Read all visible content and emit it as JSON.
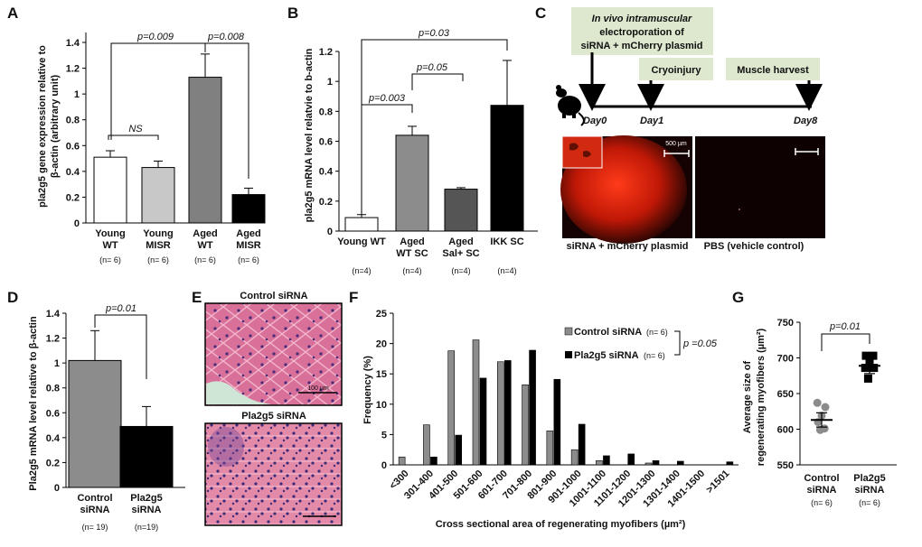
{
  "panels": {
    "A": {
      "letter": "A",
      "ylabel_line1": "pla2g5 gene expression relative to",
      "ylabel_line2": "β-actin (arbitrary unit)",
      "chart_data": {
        "type": "bar",
        "categories": [
          "Young WT",
          "Young MISR",
          "Aged WT",
          "Aged MISR"
        ],
        "cat_line1": [
          "Young",
          "Young",
          "Aged",
          "Aged"
        ],
        "cat_line2": [
          "WT",
          "MISR",
          "WT",
          "MISR"
        ],
        "n_labels": [
          "(n= 6)",
          "(n= 6)",
          "(n= 6)",
          "(n= 6)"
        ],
        "values": [
          0.51,
          0.43,
          1.13,
          0.22
        ],
        "errors": [
          0.05,
          0.05,
          0.18,
          0.05
        ],
        "colors": [
          "#ffffff",
          "#c8c8c8",
          "#808080",
          "#000000"
        ],
        "ylim": [
          0,
          1.4
        ],
        "yticks": [
          "0",
          "0.2",
          "0.4",
          "0.6",
          "0.8",
          "1",
          "1.2",
          "1.4"
        ],
        "grid": false,
        "annotations": [
          "p=0.009",
          "p=0.008",
          "NS"
        ]
      }
    },
    "B": {
      "letter": "B",
      "ylabel": "pla2g5 mRNA level relatvie to b-actin",
      "chart_data": {
        "type": "bar",
        "categories": [
          "Young WT SC",
          "Aged WT SC",
          "Aged Sal+ SC",
          "IKK SC"
        ],
        "cat_line1": [
          "Young WT",
          "Aged",
          "Aged",
          "IKK SC"
        ],
        "cat_line2": [
          "",
          "WT SC",
          "Sal+ SC",
          ""
        ],
        "n_labels": [
          "(n=4)",
          "(n=4)",
          "(n=4)",
          "(n=4)"
        ],
        "values": [
          0.09,
          0.64,
          0.28,
          0.84
        ],
        "errors": [
          0.02,
          0.06,
          0.01,
          0.3
        ],
        "colors": [
          "#ffffff",
          "#8c8c8c",
          "#555555",
          "#000000"
        ],
        "ylim": [
          0,
          1.2
        ],
        "yticks": [
          "0",
          "0.2",
          "0.4",
          "0.6",
          "0.8",
          "1",
          "1.2"
        ],
        "grid": false,
        "annotations": [
          "p=0.03",
          "p=0.05",
          "p=0.003"
        ]
      }
    },
    "C": {
      "letter": "C",
      "step1_line1": "In vivo intramuscular",
      "step1_line2": "electroporation of",
      "step1_line3": "siRNA + mCherry plasmid",
      "step2": "Cryoinjury",
      "step3": "Muscle harvest",
      "day0": "Day0",
      "day1": "Day1",
      "day8": "Day8",
      "scale_label": "500 µm",
      "img1_caption": "siRNA + mCherry plasmid",
      "img2_caption": "PBS (vehicle control)"
    },
    "D": {
      "letter": "D",
      "ylabel": "Pla2g5 mRNA level relative to β-actin",
      "chart_data": {
        "type": "bar",
        "categories": [
          "Control siRNA",
          "Pla2g5 siRNA"
        ],
        "cat_line1": [
          "Control",
          "Pla2g5"
        ],
        "cat_line2": [
          "siRNA",
          "siRNA"
        ],
        "n_labels": [
          "(n= 19)",
          "(n=19)"
        ],
        "values": [
          1.02,
          0.49
        ],
        "errors": [
          0.24,
          0.16
        ],
        "colors": [
          "#8c8c8c",
          "#000000"
        ],
        "ylim": [
          0,
          1.4
        ],
        "yticks": [
          "0",
          "0.2",
          "0.4",
          "0.6",
          "0.8",
          "1",
          "1.2",
          "1.4"
        ],
        "grid": false,
        "annotations": [
          "p=0.01"
        ]
      }
    },
    "E": {
      "letter": "E",
      "top_title": "Control siRNA",
      "bottom_title": "Pla2g5 siRNA",
      "scale_label": "100 µm"
    },
    "F": {
      "letter": "F",
      "ylabel": "Frequency (%)",
      "xlabel": "Cross sectional area of regenerating myofibers (µm²)",
      "chart_data": {
        "type": "bar",
        "categories": [
          "<300",
          "301-400",
          "401-500",
          "501-600",
          "601-700",
          "701-800",
          "801-900",
          "901-1000",
          "1001-1100",
          "1101-1200",
          "1201-1300",
          "1301-1400",
          "1401-1500",
          ">1501"
        ],
        "series": [
          {
            "name": "Control siRNA",
            "n": "(n= 6)",
            "color": "#8c8c8c",
            "values": [
              1.3,
              6.6,
              18.8,
              20.6,
              17.0,
              13.2,
              5.6,
              2.5,
              0.7,
              0.0,
              0.3,
              0.0,
              0.0,
              0.0
            ]
          },
          {
            "name": "Pla2g5 siRNA",
            "n": "(n= 6)",
            "color": "#000000",
            "values": [
              0.0,
              1.3,
              4.9,
              14.3,
              17.2,
              18.9,
              14.1,
              6.7,
              1.5,
              1.8,
              0.7,
              0.6,
              0.0,
              0.5
            ]
          }
        ],
        "ylim": [
          0,
          25
        ],
        "yticks": [
          "0",
          "5",
          "10",
          "15",
          "20",
          "25"
        ],
        "grid": false,
        "legend_position": "top-right",
        "annotations": [
          "p =0.05"
        ]
      }
    },
    "G": {
      "letter": "G",
      "ylabel_line1": "Average size of",
      "ylabel_line2": "regenerating myofibers (µm²)",
      "chart_data": {
        "type": "scatter",
        "categories": [
          "Control siRNA",
          "Pla2g5 siRNA"
        ],
        "cat_line1": [
          "Control",
          "Pla2g5"
        ],
        "cat_line2": [
          "siRNA",
          "siRNA"
        ],
        "n_labels": [
          "(n= 6)",
          "(n= 6)"
        ],
        "series": [
          {
            "name": "Control siRNA",
            "marker": "circle",
            "color": "#8c8c8c",
            "points": [
              [
                -0.12,
                637
              ],
              [
                0.1,
                631
              ],
              [
                0.0,
                619
              ],
              [
                -0.1,
                610
              ],
              [
                0.08,
                601
              ],
              [
                -0.04,
                599
              ]
            ],
            "mean": 613,
            "sem": 10
          },
          {
            "name": "Pla2g5 siRNA",
            "marker": "square",
            "color": "#000000",
            "points": [
              [
                -0.1,
                703
              ],
              [
                0.1,
                703
              ],
              [
                0.0,
                696
              ],
              [
                -0.12,
                686
              ],
              [
                0.12,
                686
              ],
              [
                -0.04,
                671
              ]
            ],
            "mean": 689,
            "sem": 11
          }
        ],
        "ylim": [
          550,
          750
        ],
        "yticks": [
          "550",
          "600",
          "650",
          "700",
          "750"
        ],
        "grid": false,
        "annotations": [
          "p=0.01"
        ]
      }
    }
  }
}
